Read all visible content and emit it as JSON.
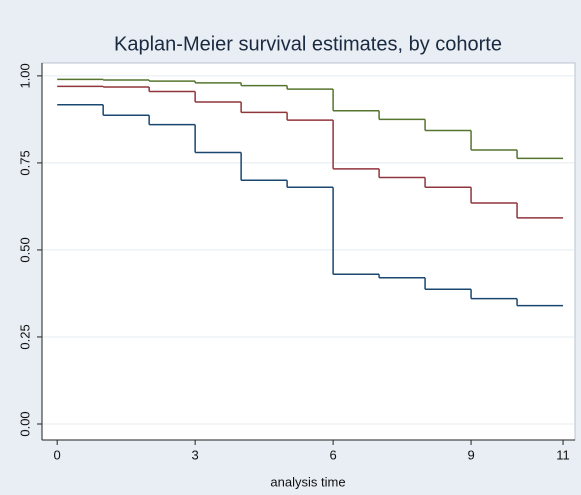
{
  "chart_data": {
    "type": "step",
    "title": "Kaplan-Meier survival estimates, by cohorte",
    "x_label": "analysis time",
    "x": [
      0,
      1,
      2,
      3,
      4,
      5,
      6,
      7,
      8,
      9,
      10,
      11
    ],
    "series": [
      {
        "color": "#55752f",
        "values": [
          0.99,
          0.988,
          0.985,
          0.98,
          0.972,
          0.962,
          0.9,
          0.875,
          0.843,
          0.787,
          0.763,
          0.763
        ]
      },
      {
        "color": "#90353b",
        "values": [
          0.97,
          0.968,
          0.955,
          0.925,
          0.895,
          0.873,
          0.733,
          0.708,
          0.68,
          0.635,
          0.592,
          0.592
        ]
      },
      {
        "color": "#1a476f",
        "values": [
          0.917,
          0.887,
          0.86,
          0.78,
          0.7,
          0.68,
          0.43,
          0.42,
          0.387,
          0.36,
          0.34,
          0.34
        ]
      }
    ],
    "xlim": [
      -0.33,
      11.26
    ],
    "xticks": [
      0,
      3,
      6,
      9,
      11
    ],
    "ylim": [
      -0.046,
      1.037
    ],
    "yticks": [
      {
        "value": 0,
        "label": "0.00"
      },
      {
        "value": 0.25,
        "label": "0.25"
      },
      {
        "value": 0.5,
        "label": "0.50"
      },
      {
        "value": 0.75,
        "label": "0.75"
      },
      {
        "value": 1,
        "label": "1.00"
      }
    ],
    "grid": true
  }
}
